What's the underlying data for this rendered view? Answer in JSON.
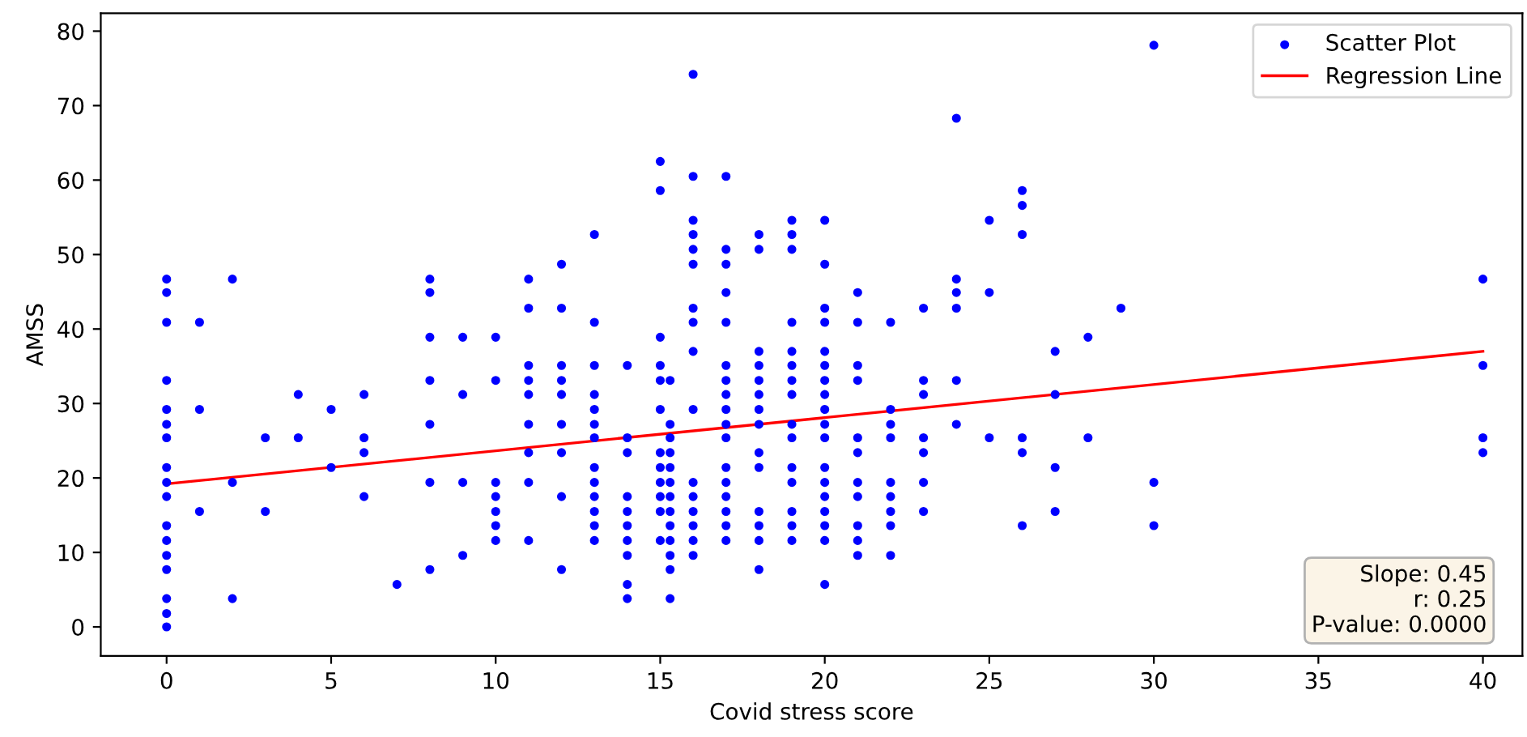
{
  "chart_data": {
    "type": "scatter",
    "xlabel": "Covid stress score",
    "ylabel": "AMSS",
    "xlim": [
      -2,
      41.2
    ],
    "ylim": [
      -3.9,
      82.4
    ],
    "xticks": [
      0,
      5,
      10,
      15,
      20,
      25,
      30,
      35,
      40
    ],
    "yticks": [
      0,
      10,
      20,
      30,
      40,
      50,
      60,
      70,
      80
    ],
    "grid": false,
    "legend": "top right",
    "annotations": [
      "Slope: 0.45",
      "r: 0.25",
      "P-value: 0.0000"
    ],
    "series": [
      {
        "name": "Scatter Plot",
        "marker": "circle",
        "color": "#0000ff",
        "x": [
          0,
          0,
          0,
          0,
          0,
          0,
          0,
          0,
          0,
          0,
          0,
          0,
          0,
          0,
          0,
          0,
          0,
          1,
          1,
          1,
          2,
          2,
          2,
          3,
          3,
          4,
          4,
          5,
          5,
          6,
          6,
          6,
          6,
          7,
          8,
          8,
          8,
          8,
          8,
          8,
          8,
          9,
          9,
          9,
          9,
          10,
          10,
          10,
          10,
          10,
          10,
          10,
          11,
          11,
          11,
          11,
          11,
          11,
          11,
          11,
          11,
          12,
          12,
          12,
          12,
          12,
          12,
          12,
          12,
          12,
          13,
          13,
          13,
          13,
          13,
          13,
          13,
          13,
          13,
          13,
          13,
          13,
          13,
          14,
          14,
          14,
          14,
          14,
          14,
          14,
          14,
          14,
          14,
          15,
          15,
          15,
          15,
          15,
          15,
          15,
          15,
          15,
          15,
          15,
          15,
          15.3,
          15.3,
          15.3,
          15.3,
          15.3,
          15.3,
          15.3,
          15.3,
          15.3,
          15.3,
          15.3,
          15.3,
          15.3,
          16,
          16,
          16,
          16,
          16,
          16,
          16,
          16,
          16,
          16,
          16,
          16,
          16,
          16,
          16,
          16,
          17,
          17,
          17,
          17,
          17,
          17,
          17,
          17,
          17,
          17,
          17,
          17,
          17,
          17,
          17,
          17,
          17,
          18,
          18,
          18,
          18,
          18,
          18,
          18,
          18,
          18,
          18,
          18,
          18,
          18,
          18,
          19,
          19,
          19,
          19,
          19,
          19,
          19,
          19,
          19,
          19,
          19,
          19,
          19,
          19,
          19,
          20,
          20,
          20,
          20,
          20,
          20,
          20,
          20,
          20,
          20,
          20,
          20,
          20,
          20,
          20,
          20,
          20,
          20,
          21,
          21,
          21,
          21,
          21,
          21,
          21,
          21,
          21,
          21,
          21,
          22,
          22,
          22,
          22,
          22,
          22,
          22,
          22,
          22,
          23,
          23,
          23,
          23,
          23,
          23,
          23,
          24,
          24,
          24,
          24,
          24,
          24,
          25,
          25,
          25,
          26,
          26,
          26,
          26,
          26,
          26,
          27,
          27,
          27,
          27,
          28,
          28,
          29,
          30,
          30,
          30,
          40,
          40,
          40,
          40
        ],
        "values": [
          46.7,
          44.9,
          40.9,
          33.1,
          29.2,
          27.2,
          25.4,
          21.4,
          19.4,
          17.5,
          13.6,
          11.6,
          9.6,
          7.7,
          3.8,
          1.8,
          0,
          40.9,
          29.2,
          15.5,
          46.7,
          19.4,
          3.8,
          25.4,
          15.5,
          31.2,
          25.4,
          29.2,
          21.4,
          31.2,
          25.4,
          23.4,
          17.5,
          5.7,
          46.7,
          44.9,
          38.9,
          33.1,
          27.2,
          19.4,
          7.7,
          38.9,
          31.2,
          19.4,
          9.6,
          38.9,
          33.1,
          19.4,
          17.5,
          15.5,
          13.6,
          11.6,
          46.7,
          42.8,
          35.1,
          33.1,
          31.2,
          27.2,
          23.4,
          19.4,
          11.6,
          48.7,
          42.8,
          35.1,
          33.1,
          31.2,
          27.2,
          23.4,
          17.5,
          7.7,
          52.7,
          40.9,
          35.1,
          31.2,
          29.2,
          27.2,
          25.4,
          21.4,
          19.4,
          17.5,
          15.5,
          13.6,
          11.6,
          35.1,
          25.4,
          23.4,
          17.5,
          15.5,
          13.6,
          11.6,
          9.6,
          5.7,
          3.8,
          62.5,
          58.6,
          38.9,
          35.1,
          33.1,
          29.2,
          23.4,
          21.4,
          19.4,
          17.5,
          15.5,
          11.6,
          33.1,
          27.2,
          25.4,
          23.4,
          21.4,
          19.4,
          17.5,
          15.5,
          13.6,
          11.6,
          9.6,
          7.7,
          3.8,
          74.2,
          60.5,
          54.6,
          52.7,
          50.7,
          48.7,
          42.8,
          40.9,
          37,
          29.2,
          19.4,
          17.5,
          15.5,
          13.6,
          11.6,
          9.6,
          60.5,
          50.7,
          48.7,
          44.9,
          40.9,
          35.1,
          33.1,
          31.2,
          29.2,
          27.2,
          25.4,
          21.4,
          19.4,
          17.5,
          15.5,
          13.6,
          11.6,
          52.7,
          50.7,
          37,
          35.1,
          33.1,
          31.2,
          29.2,
          27.2,
          23.4,
          21.4,
          15.5,
          13.6,
          11.6,
          7.7,
          54.6,
          52.7,
          50.7,
          40.9,
          37,
          35.1,
          33.1,
          31.2,
          27.2,
          25.4,
          21.4,
          19.4,
          15.5,
          13.6,
          11.6,
          54.6,
          48.7,
          42.8,
          40.9,
          37,
          35.1,
          33.1,
          31.2,
          29.2,
          27.2,
          25.4,
          21.4,
          19.4,
          17.5,
          15.5,
          13.6,
          11.6,
          5.7,
          44.9,
          40.9,
          35.1,
          33.1,
          25.4,
          23.4,
          19.4,
          17.5,
          13.6,
          11.6,
          9.6,
          40.9,
          29.2,
          27.2,
          25.4,
          19.4,
          17.5,
          15.5,
          13.6,
          9.6,
          42.8,
          33.1,
          31.2,
          25.4,
          23.4,
          19.4,
          15.5,
          68.3,
          46.7,
          44.9,
          42.8,
          33.1,
          27.2,
          54.6,
          44.9,
          25.4,
          58.6,
          56.6,
          52.7,
          25.4,
          23.4,
          13.6,
          37,
          31.2,
          21.4,
          15.5,
          38.9,
          25.4,
          42.8,
          78.1,
          19.4,
          13.6,
          46.7,
          35.1,
          25.4,
          23.4
        ]
      },
      {
        "name": "Regression Line",
        "type": "line",
        "color": "#ff0000",
        "x": [
          0,
          40
        ],
        "values": [
          19.2,
          37.0
        ]
      }
    ]
  }
}
